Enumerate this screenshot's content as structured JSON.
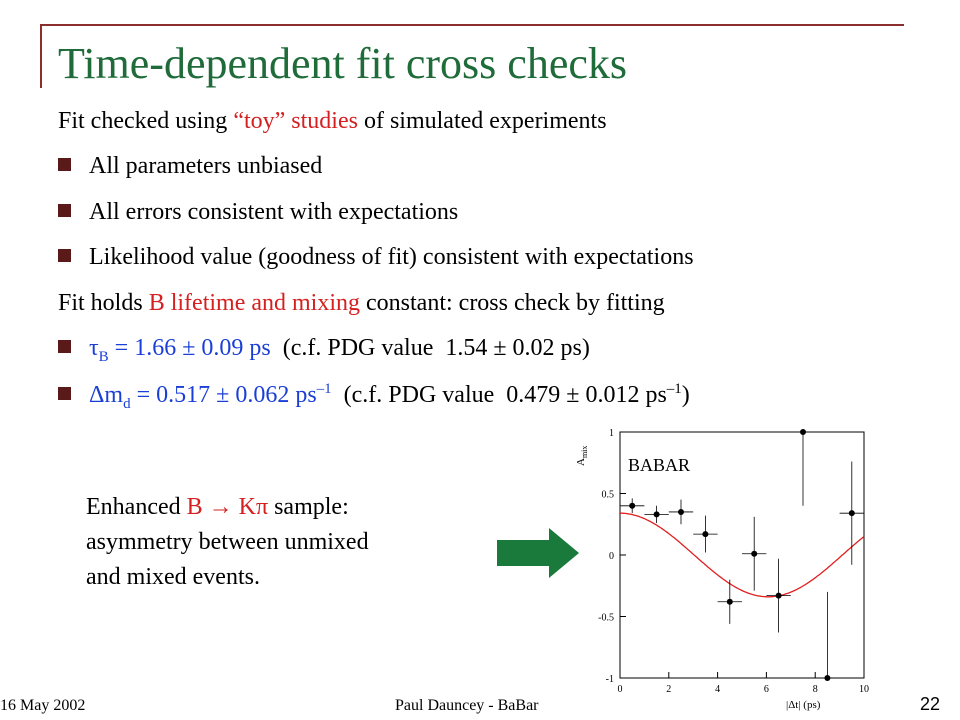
{
  "slide": {
    "title": "Time-dependent fit cross checks",
    "line1": {
      "a": "Fit checked using ",
      "b": "“toy” studies",
      "c": " of simulated experiments"
    },
    "bullets1": [
      "All parameters unbiased",
      "All errors consistent with expectations",
      "Likelihood value (goodness of fit) consistent with expectations"
    ],
    "line2": {
      "a": "Fit holds ",
      "b": "B lifetime and mixing",
      "c": " constant: cross check by fitting"
    },
    "tau": {
      "sym": "τ",
      "sub": "B",
      "val": " = 1.66 ± 0.09 ps",
      "pdg": "  (c.f. PDG value  1.54 ± 0.02 ps)"
    },
    "dm": {
      "sym": "Δm",
      "sub": "d",
      "val": " = 0.517 ± 0.062 ps",
      "sup": "–1",
      "pdg": "  (c.f. PDG value  0.479 ± 0.012 ps",
      "sup2": "–1",
      "close": ")"
    },
    "callout": {
      "a": "Enhanced ",
      "b": "B → Kπ",
      "c": " sample:",
      "line2": "asymmetry between unmixed",
      "line3": "and mixed events."
    },
    "footer": {
      "date": "16 May 2002",
      "author": "Paul Dauncey - BaBar",
      "page": "22"
    },
    "colors": {
      "title": "#1f6b3a",
      "highlight": "#d42020",
      "value": "#1a3fd6",
      "arrow": "#1a7a3c",
      "bullet": "#5b1a1a"
    },
    "icons": {
      "bullet": "square-bullet-icon",
      "arrow": "right-arrow-icon"
    }
  },
  "chart_data": {
    "type": "scatter",
    "ylabel": "A",
    "ylabel_sub": "mix",
    "xlabel": "|Δt| (ps)",
    "logo": "BABAR",
    "xlim": [
      0,
      10
    ],
    "ylim": [
      -1,
      1
    ],
    "xticks": [
      0,
      2,
      4,
      6,
      8,
      10
    ],
    "yticks": [
      1,
      0.5,
      0,
      -0.5,
      -1
    ],
    "points": [
      {
        "x": 0.5,
        "y": 0.4,
        "ey": 0.06,
        "ex": 0.5
      },
      {
        "x": 1.5,
        "y": 0.33,
        "ey": 0.07,
        "ex": 0.5
      },
      {
        "x": 2.5,
        "y": 0.35,
        "ey": 0.1,
        "ex": 0.5
      },
      {
        "x": 3.5,
        "y": 0.17,
        "ey": 0.15,
        "ex": 0.5
      },
      {
        "x": 4.5,
        "y": -0.38,
        "ey": 0.18,
        "ex": 0.5
      },
      {
        "x": 5.5,
        "y": 0.01,
        "ey": 0.3,
        "ex": 0.5
      },
      {
        "x": 6.5,
        "y": -0.33,
        "ey": 0.3,
        "ex": 0.5
      },
      {
        "x": 7.5,
        "y": 1.0,
        "ey": 0.6,
        "ex": 0.5
      },
      {
        "x": 8.5,
        "y": -1.0,
        "ey": 0.7,
        "ex": 0.5
      },
      {
        "x": 9.5,
        "y": 0.34,
        "ey": 0.42,
        "ex": 0.5
      }
    ],
    "curve": {
      "amplitude": 0.34,
      "omega": 0.517
    },
    "colors": {
      "points": "#000000",
      "curve": "#e02020"
    }
  }
}
